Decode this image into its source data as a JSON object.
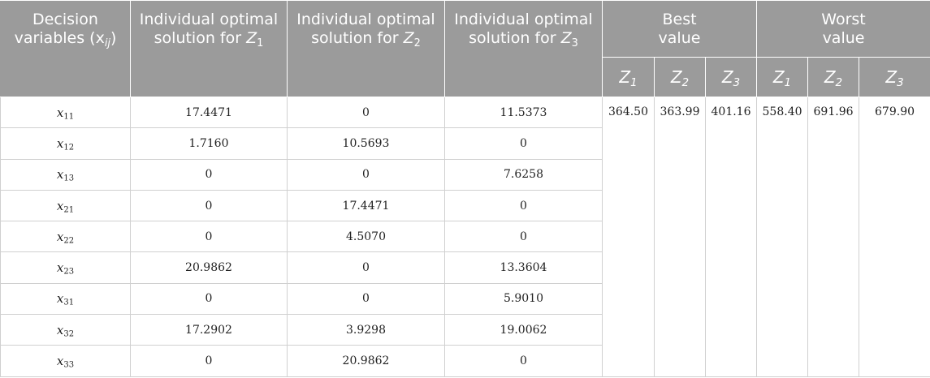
{
  "header": {
    "col_decision": "Decision variables (x",
    "col_decision_sub": "ij",
    "col_decision_close": ")",
    "col_z1": "Individual optimal solution for",
    "col_z2": "Individual optimal solution for",
    "col_z3": "Individual optimal solution for",
    "z_letter": "Z",
    "sub1": "1",
    "sub2": "2",
    "sub3": "3",
    "best": "Best value",
    "worst": "Worst value"
  },
  "rows": [
    {
      "var": "x",
      "sub": "11",
      "z1": "17.4471",
      "z2": "0",
      "z3": "11.5373"
    },
    {
      "var": "x",
      "sub": "12",
      "z1": "1.7160",
      "z2": "10.5693",
      "z3": "0"
    },
    {
      "var": "x",
      "sub": "13",
      "z1": "0",
      "z2": "0",
      "z3": "7.6258"
    },
    {
      "var": "x",
      "sub": "21",
      "z1": "0",
      "z2": "17.4471",
      "z3": "0"
    },
    {
      "var": "x",
      "sub": "22",
      "z1": "0",
      "z2": "4.5070",
      "z3": "0"
    },
    {
      "var": "x",
      "sub": "23",
      "z1": "20.9862",
      "z2": "0",
      "z3": "13.3604"
    },
    {
      "var": "x",
      "sub": "31",
      "z1": "0",
      "z2": "0",
      "z3": "5.9010"
    },
    {
      "var": "x",
      "sub": "32",
      "z1": "17.2902",
      "z2": "3.9298",
      "z3": "19.0062"
    },
    {
      "var": "x",
      "sub": "33",
      "z1": "0",
      "z2": "20.9862",
      "z3": "0"
    }
  ],
  "best": {
    "z1": "364.50",
    "z2": "363.99",
    "z3": "401.16"
  },
  "worst": {
    "z1": "558.40",
    "z2": "691.96",
    "z3": "679.90"
  }
}
